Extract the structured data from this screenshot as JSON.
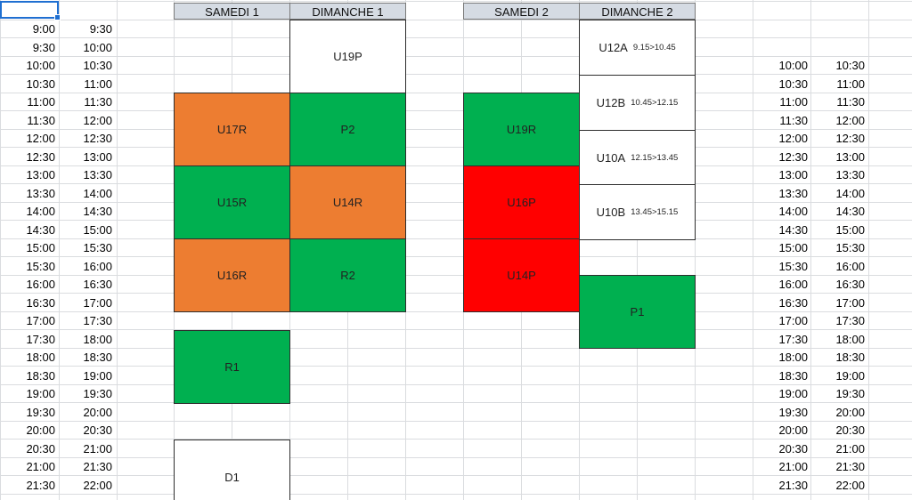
{
  "colors": {
    "green": "#00b050",
    "orange": "#ed7d31",
    "red": "#ff0000",
    "white": "#ffffff"
  },
  "headers": [
    "SAMEDI 1",
    "DIMANCHE 1",
    "SAMEDI 2",
    "DIMANCHE 2"
  ],
  "left_times": {
    "start": [
      "9:00",
      "9:30",
      "10:00",
      "10:30",
      "11:00",
      "11:30",
      "12:00",
      "12:30",
      "13:00",
      "13:30",
      "14:00",
      "14:30",
      "15:00",
      "15:30",
      "16:00",
      "16:30",
      "17:00",
      "17:30",
      "18:00",
      "18:30",
      "19:00",
      "19:30",
      "20:00",
      "20:30",
      "21:00",
      "21:30"
    ],
    "end": [
      "9:30",
      "10:00",
      "10:30",
      "11:00",
      "11:30",
      "12:00",
      "12:30",
      "13:00",
      "13:30",
      "14:00",
      "14:30",
      "15:00",
      "15:30",
      "16:00",
      "16:30",
      "17:00",
      "17:30",
      "18:00",
      "18:30",
      "19:00",
      "19:30",
      "20:00",
      "20:30",
      "21:00",
      "21:30",
      "22:00"
    ]
  },
  "right_times": {
    "start": [
      "10:00",
      "10:30",
      "11:00",
      "11:30",
      "12:00",
      "12:30",
      "13:00",
      "13:30",
      "14:00",
      "14:30",
      "15:00",
      "15:30",
      "16:00",
      "16:30",
      "17:00",
      "17:30",
      "18:00",
      "18:30",
      "19:00",
      "19:30",
      "20:00",
      "20:30",
      "21:00",
      "21:30"
    ],
    "end": [
      "10:30",
      "11:00",
      "11:30",
      "12:00",
      "12:30",
      "13:00",
      "13:30",
      "14:00",
      "14:30",
      "15:00",
      "15:30",
      "16:00",
      "16:30",
      "17:00",
      "17:30",
      "18:00",
      "18:30",
      "19:00",
      "19:30",
      "20:00",
      "20:30",
      "21:00",
      "21:30",
      "22:00"
    ]
  },
  "blocks": {
    "u19p": {
      "label": "U19P",
      "color": "white"
    },
    "u17r": {
      "label": "U17R",
      "color": "orange"
    },
    "p2": {
      "label": "P2",
      "color": "green"
    },
    "u15r": {
      "label": "U15R",
      "color": "green"
    },
    "u14r": {
      "label": "U14R",
      "color": "orange"
    },
    "u16r": {
      "label": "U16R",
      "color": "orange"
    },
    "r2": {
      "label": "R2",
      "color": "green"
    },
    "r1": {
      "label": "R1",
      "color": "green"
    },
    "d1": {
      "label": "D1",
      "color": "white"
    },
    "u19r": {
      "label": "U19R",
      "color": "green"
    },
    "u16p": {
      "label": "U16P",
      "color": "red"
    },
    "u14p": {
      "label": "U14P",
      "color": "red"
    },
    "u12a": {
      "label": "U12A",
      "note": "9.15>10.45",
      "color": "white"
    },
    "u12b": {
      "label": "U12B",
      "note": "10.45>12.15",
      "color": "white"
    },
    "u10a": {
      "label": "U10A",
      "note": "12.15>13.45",
      "color": "white"
    },
    "u10b": {
      "label": "U10B",
      "note": "13.45>15.15",
      "color": "white"
    },
    "p1": {
      "label": "P1",
      "color": "green"
    }
  }
}
